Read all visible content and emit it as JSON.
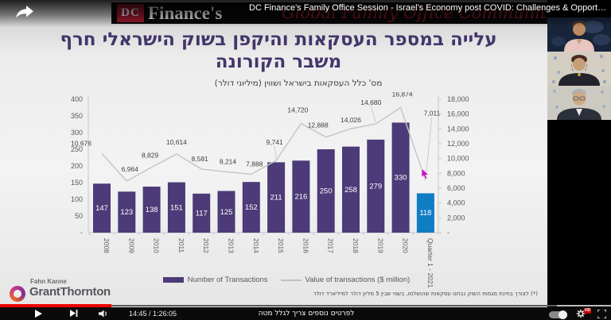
{
  "player": {
    "title": "DC Finance's Family Office Session - Israel's Economy post COVID: Challenges & Opportunities",
    "time": "14:45 / 1:26:05",
    "caption": "לפרטים נוספים צריך לגלל מטה",
    "hd_badge": "HD",
    "progress_percent": 18,
    "icons": {
      "share": "share-arrow",
      "play": "play-triangle",
      "next": "next-track",
      "volume": "speaker",
      "autoplay": "autoplay-toggle",
      "settings": "gear",
      "fullscreen": "expand-corners"
    }
  },
  "slide": {
    "logo_dc": "DC",
    "logo_name": "Finance's",
    "logo_script": "Global Family Office Community",
    "title_line1": "עלייה במספר העסקאות והיקפן בשוק הישראלי חרף",
    "title_line2": "משבר הקורונה",
    "footnote": "(*) לצורך בחינת מגמות השוק נבחנו עסקאות שהושלמו, בשווי שבין 5 מליון דולר למיליארד דולר",
    "brand_top": "Fahn Kanne",
    "brand_name": "GrantThornton"
  },
  "chart_data": {
    "type": "bar",
    "title": "מס' כלל העסקאות בישראל ושווין (מיליוני דולר)",
    "categories": [
      "2008",
      "2009",
      "2010",
      "2011",
      "2012",
      "2013",
      "2014",
      "2015",
      "2016",
      "2017",
      "2018",
      "2019",
      "2020",
      "Quarter 1 - 2021"
    ],
    "series": [
      {
        "name": "Number of Transactions",
        "type": "bar",
        "axis": "left",
        "values": [
          147,
          123,
          138,
          151,
          117,
          125,
          152,
          211,
          216,
          250,
          258,
          279,
          330,
          118
        ]
      },
      {
        "name": "Value of transactions ($ million)",
        "type": "line",
        "axis": "right",
        "values": [
          10676,
          6964,
          8829,
          10614,
          8581,
          8214,
          7888,
          9741,
          14720,
          12888,
          14026,
          14680,
          16874,
          7011
        ]
      }
    ],
    "line_labels": [
      "10,676",
      "6,964",
      "8,829",
      "10,614",
      "8,581",
      "8,214",
      "7,888",
      "9,741",
      "14,720",
      "12,888",
      "14,026",
      "14,680",
      "16,874",
      "7,011"
    ],
    "left_axis_ticks": [
      "400",
      "350",
      "300",
      "250",
      "200",
      "150",
      "100",
      "50",
      "-"
    ],
    "right_axis_ticks": [
      "18,000",
      "16,000",
      "14,000",
      "12,000",
      "10,000",
      "8,000",
      "6,000",
      "4,000",
      "2,000",
      "-"
    ],
    "left_max": 400,
    "right_max": 18000,
    "legend": [
      "Number of Transactions",
      "Value of transactions ($ million)"
    ],
    "bar_color": "#4d3a78",
    "last_bar_color": "#0f7dc4",
    "line_color": "#c6c6c6",
    "grid": false,
    "legend_position": "bottom"
  }
}
